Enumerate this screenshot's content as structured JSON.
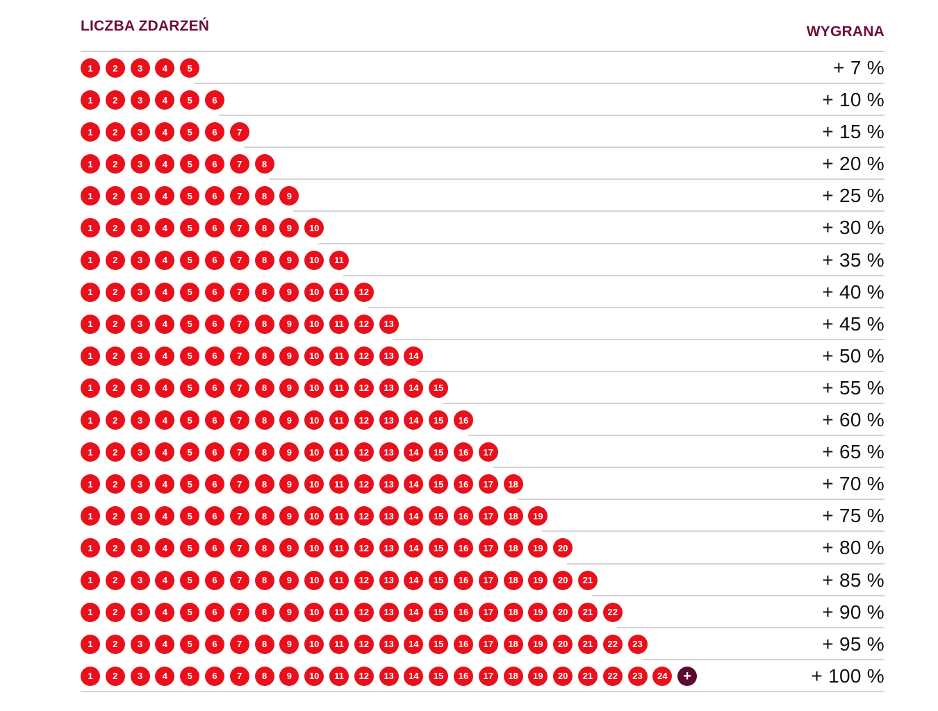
{
  "header": {
    "left_label": "LICZBA ZDARZEŃ",
    "right_label": "WYGRANA"
  },
  "colors": {
    "header_text": "#6b0f3c",
    "ball": "#ea101b",
    "plus_ball": "#5c0a33"
  },
  "rows": [
    {
      "events": 5,
      "bonus": "+ 7 %"
    },
    {
      "events": 6,
      "bonus": "+ 10 %"
    },
    {
      "events": 7,
      "bonus": "+ 15 %"
    },
    {
      "events": 8,
      "bonus": "+ 20 %"
    },
    {
      "events": 9,
      "bonus": "+ 25 %"
    },
    {
      "events": 10,
      "bonus": "+ 30 %"
    },
    {
      "events": 11,
      "bonus": "+ 35 %"
    },
    {
      "events": 12,
      "bonus": "+ 40 %"
    },
    {
      "events": 13,
      "bonus": "+ 45 %"
    },
    {
      "events": 14,
      "bonus": "+ 50 %"
    },
    {
      "events": 15,
      "bonus": "+ 55 %"
    },
    {
      "events": 16,
      "bonus": "+ 60 %"
    },
    {
      "events": 17,
      "bonus": "+ 65 %"
    },
    {
      "events": 18,
      "bonus": "+ 70 %"
    },
    {
      "events": 19,
      "bonus": "+ 75 %"
    },
    {
      "events": 20,
      "bonus": "+ 80 %"
    },
    {
      "events": 21,
      "bonus": "+ 85 %"
    },
    {
      "events": 22,
      "bonus": "+ 90 %"
    },
    {
      "events": 23,
      "bonus": "+ 95 %"
    },
    {
      "events": 24,
      "bonus": "+ 100 %",
      "plus": "+"
    }
  ]
}
